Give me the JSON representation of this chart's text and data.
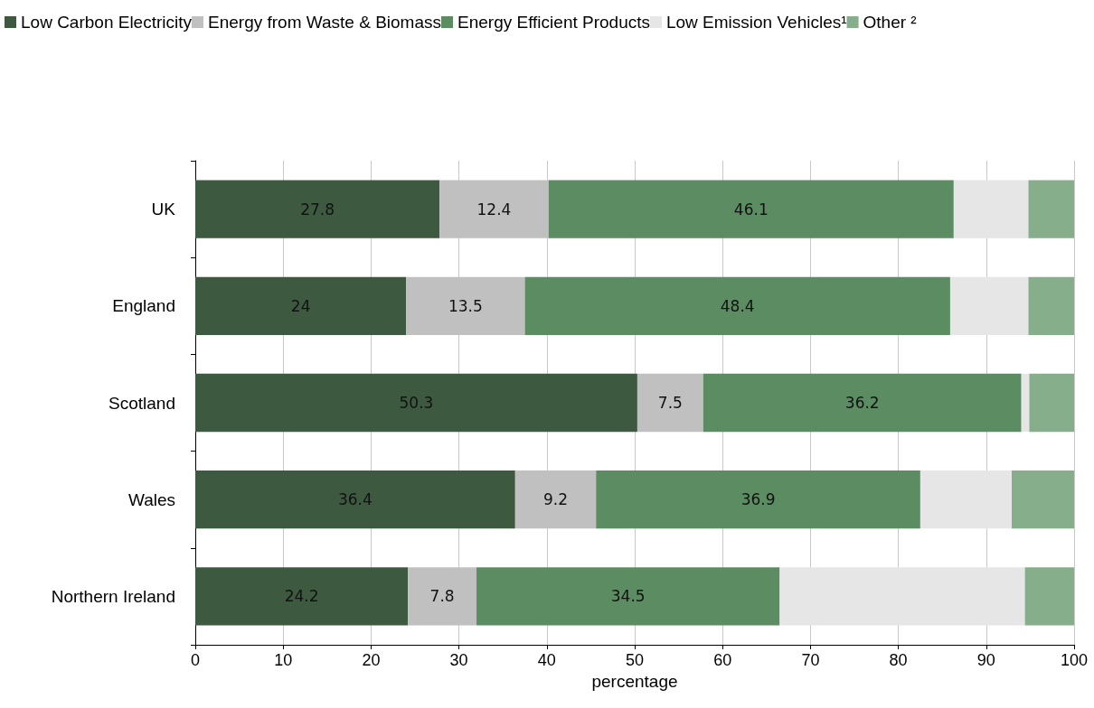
{
  "chart_data": {
    "type": "bar",
    "orientation": "horizontal",
    "stacked": true,
    "xlabel": "percentage",
    "categories": [
      "UK",
      "England",
      "Scotland",
      "Wales",
      "Northern Ireland"
    ],
    "series": [
      {
        "name": "Low Carbon Electricity",
        "color": "#3d5a40",
        "values": [
          27.8,
          24,
          50.3,
          36.4,
          24.2
        ],
        "value_labels": [
          "27.8",
          "24",
          "50.3",
          "36.4",
          "24.2"
        ]
      },
      {
        "name": "Energy from Waste & Biomass",
        "color": "#c0c0c0",
        "values": [
          12.4,
          13.5,
          7.5,
          9.2,
          7.8
        ],
        "value_labels": [
          "12.4",
          "13.5",
          "7.5",
          "9.2",
          "7.8"
        ]
      },
      {
        "name": "Energy Efficient Products",
        "color": "#5b8c62",
        "values": [
          46.1,
          48.4,
          36.2,
          36.9,
          34.5
        ],
        "value_labels": [
          "46.1",
          "48.4",
          "36.2",
          "36.9",
          "34.5"
        ]
      },
      {
        "name": "Low Emission Vehicles¹",
        "color": "#e6e6e6",
        "values": [
          8.5,
          8.9,
          0.9,
          10.4,
          27.9
        ]
      },
      {
        "name": "Other ²",
        "color": "#86ae8a",
        "values": [
          5.2,
          5.2,
          5.1,
          7.1,
          5.6
        ]
      }
    ],
    "xlim": [
      0,
      100
    ],
    "xticks": [
      0,
      10,
      20,
      30,
      40,
      50,
      60,
      70,
      80,
      90,
      100
    ],
    "grid": "x",
    "legend": "top"
  }
}
